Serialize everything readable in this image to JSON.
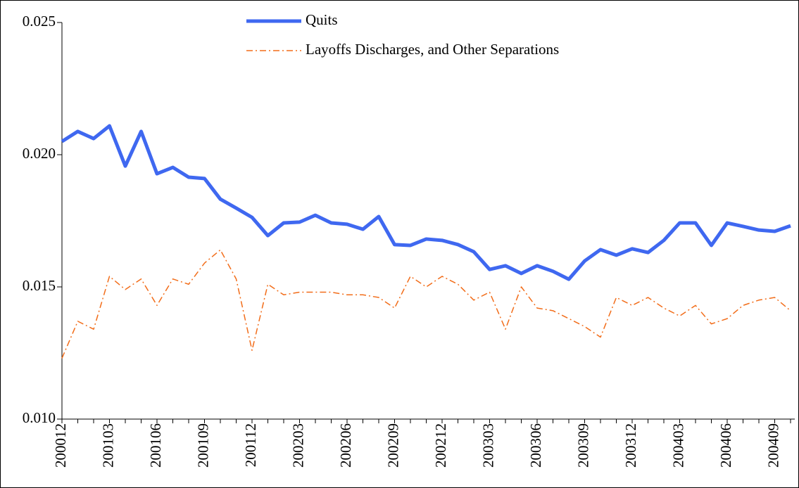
{
  "chart_data": {
    "type": "line",
    "categories": [
      "200012",
      null,
      null,
      "200103",
      null,
      null,
      "200106",
      null,
      null,
      "200109",
      null,
      null,
      "200112",
      null,
      null,
      "200203",
      null,
      null,
      "200206",
      null,
      null,
      "200209",
      null,
      null,
      "200212",
      null,
      null,
      "200303",
      null,
      null,
      "200306",
      null,
      null,
      "200309",
      null,
      null,
      "200312",
      null,
      null,
      "200403",
      null,
      null,
      "200406",
      null,
      null,
      "200409",
      null
    ],
    "series": [
      {
        "name": "Quits",
        "color": "#3f68f0",
        "linestyle": "solid",
        "values": [
          0.0205,
          0.02088,
          0.02061,
          0.02109,
          0.01957,
          0.02088,
          0.01928,
          0.01952,
          0.01915,
          0.0191,
          0.01832,
          0.01798,
          0.01763,
          0.01694,
          0.01742,
          0.01745,
          0.01771,
          0.01742,
          0.01737,
          0.01718,
          0.01766,
          0.0166,
          0.01657,
          0.01681,
          0.01676,
          0.0166,
          0.01633,
          0.01566,
          0.0158,
          0.01551,
          0.0158,
          0.01559,
          0.01529,
          0.01598,
          0.01641,
          0.0162,
          0.01644,
          0.0163,
          0.01676,
          0.01742,
          0.01742,
          0.01657,
          0.01742,
          0.01729,
          0.01715,
          0.0171,
          0.01731
        ]
      },
      {
        "name": "Layoffs Discharges, and Other Separations",
        "color": "#f26d1a",
        "linestyle": "dashdot",
        "values": [
          0.0123,
          0.0137,
          0.0134,
          0.0154,
          0.0149,
          0.0153,
          0.0143,
          0.0153,
          0.0151,
          0.0159,
          0.0164,
          0.0153,
          0.0126,
          0.0151,
          0.0147,
          0.0148,
          0.0148,
          0.0148,
          0.0147,
          0.0147,
          0.0146,
          0.0142,
          0.0154,
          0.015,
          0.0154,
          0.0151,
          0.0145,
          0.0148,
          0.0134,
          0.015,
          0.0142,
          0.0141,
          0.0138,
          0.0135,
          0.0131,
          0.0146,
          0.0143,
          0.0146,
          0.0142,
          0.0139,
          0.0143,
          0.0136,
          0.0138,
          0.0143,
          0.0145,
          0.0146,
          0.0141
        ]
      }
    ],
    "ylim": [
      0.01,
      0.025
    ],
    "yticks": [
      {
        "value": 0.01,
        "label": "0.010"
      },
      {
        "value": 0.015,
        "label": "0.015"
      },
      {
        "value": 0.02,
        "label": "0.020"
      },
      {
        "value": 0.025,
        "label": "0.025"
      }
    ],
    "grid": false,
    "legend": "top"
  }
}
